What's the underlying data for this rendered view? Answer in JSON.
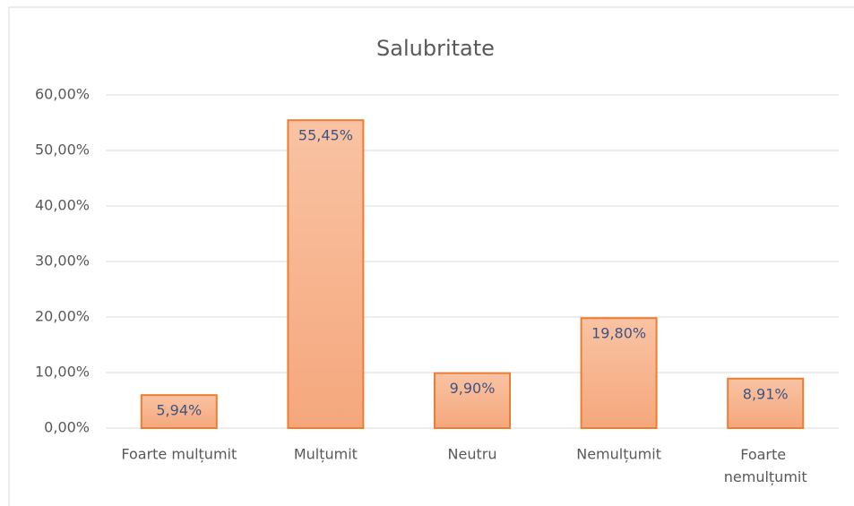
{
  "chart_data": {
    "type": "bar",
    "title": "Salubritate",
    "categories": [
      "Foarte mulțumit",
      "Mulțumit",
      "Neutru",
      "Nemulțumit",
      "Foarte nemulțumit"
    ],
    "values": [
      5.94,
      55.45,
      9.9,
      19.8,
      8.91
    ],
    "value_labels": [
      "5,94%",
      "55,45%",
      "9,90%",
      "19,80%",
      "8,91%"
    ],
    "color": "#ed7d31",
    "ylim": [
      0,
      60
    ],
    "yticks": [
      {
        "value": 0,
        "label": "0,00%"
      },
      {
        "value": 10,
        "label": "10,00%"
      },
      {
        "value": 20,
        "label": "20,00%"
      },
      {
        "value": 30,
        "label": "30,00%"
      },
      {
        "value": 40,
        "label": "40,00%"
      },
      {
        "value": 50,
        "label": "50,00%"
      },
      {
        "value": 60,
        "label": "60,00%"
      }
    ],
    "grid": true
  }
}
